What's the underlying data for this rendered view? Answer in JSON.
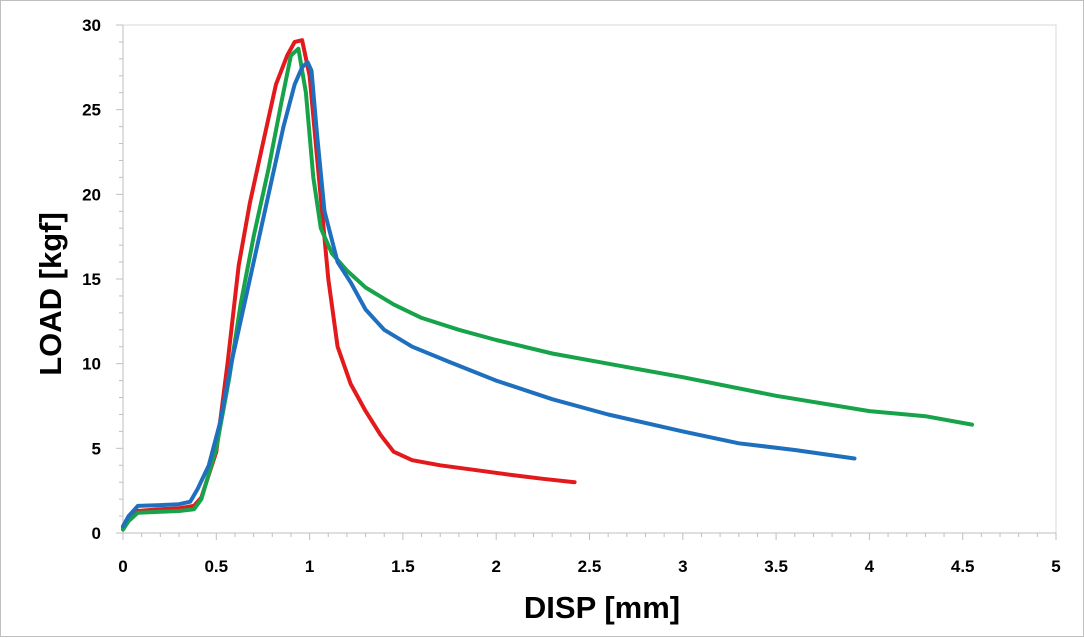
{
  "chart_data": {
    "type": "line",
    "title": "",
    "xlabel": "DISP [mm]",
    "ylabel": "LOAD [kgf]",
    "xlim": [
      0,
      5
    ],
    "ylim": [
      0,
      30
    ],
    "x_ticks": [
      0,
      0.5,
      1,
      1.5,
      2,
      2.5,
      3,
      3.5,
      4,
      4.5,
      5
    ],
    "x_tick_labels": [
      "0",
      "0.5",
      "1",
      "1.5",
      "2",
      "2.5",
      "3",
      "3.5",
      "4",
      "4.5",
      "5"
    ],
    "y_ticks": [
      0,
      5,
      10,
      15,
      20,
      25,
      30
    ],
    "y_tick_labels": [
      "0",
      "5",
      "10",
      "15",
      "20",
      "25",
      "30"
    ],
    "grid": false,
    "legend": "none",
    "series": [
      {
        "color": "#e31a1c",
        "x": [
          0,
          0.03,
          0.08,
          0.2,
          0.3,
          0.38,
          0.42,
          0.5,
          0.56,
          0.62,
          0.68,
          0.75,
          0.82,
          0.88,
          0.92,
          0.96,
          1.0,
          1.05,
          1.1,
          1.15,
          1.22,
          1.3,
          1.38,
          1.45,
          1.55,
          1.7,
          1.9,
          2.1,
          2.25,
          2.42
        ],
        "y": [
          0.3,
          0.9,
          1.3,
          1.4,
          1.45,
          1.6,
          2.1,
          4.8,
          10.0,
          15.8,
          19.5,
          23.0,
          26.5,
          28.2,
          29.0,
          29.1,
          27.0,
          21.0,
          15.0,
          11.0,
          8.8,
          7.2,
          5.8,
          4.8,
          4.3,
          4.0,
          3.7,
          3.4,
          3.2,
          3.0
        ]
      },
      {
        "color": "#17a34a",
        "x": [
          0,
          0.03,
          0.08,
          0.2,
          0.3,
          0.38,
          0.42,
          0.5,
          0.57,
          0.63,
          0.7,
          0.78,
          0.85,
          0.9,
          0.94,
          0.98,
          1.02,
          1.06,
          1.12,
          1.2,
          1.3,
          1.45,
          1.6,
          1.8,
          2.0,
          2.3,
          2.6,
          3.0,
          3.5,
          4.0,
          4.3,
          4.55
        ],
        "y": [
          0.2,
          0.7,
          1.2,
          1.25,
          1.3,
          1.4,
          2.0,
          5.0,
          9.2,
          13.5,
          17.5,
          21.5,
          25.5,
          28.2,
          28.6,
          26.0,
          21.0,
          18.0,
          16.5,
          15.5,
          14.5,
          13.5,
          12.7,
          12.0,
          11.4,
          10.6,
          10.0,
          9.2,
          8.1,
          7.2,
          6.9,
          6.4
        ]
      },
      {
        "color": "#1f6fbf",
        "x": [
          0,
          0.03,
          0.08,
          0.2,
          0.3,
          0.36,
          0.4,
          0.46,
          0.52,
          0.58,
          0.65,
          0.72,
          0.79,
          0.86,
          0.92,
          0.96,
          0.99,
          1.01,
          1.04,
          1.08,
          1.15,
          1.22,
          1.3,
          1.4,
          1.55,
          1.75,
          2.0,
          2.3,
          2.6,
          3.0,
          3.3,
          3.6,
          3.92
        ],
        "y": [
          0.4,
          1.0,
          1.6,
          1.65,
          1.7,
          1.85,
          2.6,
          4.0,
          6.5,
          10.0,
          13.5,
          17.0,
          20.5,
          24.0,
          26.5,
          27.5,
          27.8,
          27.3,
          23.5,
          19.0,
          16.0,
          14.8,
          13.2,
          12.0,
          11.0,
          10.1,
          9.0,
          7.9,
          7.0,
          6.0,
          5.3,
          4.9,
          4.4
        ]
      }
    ]
  }
}
